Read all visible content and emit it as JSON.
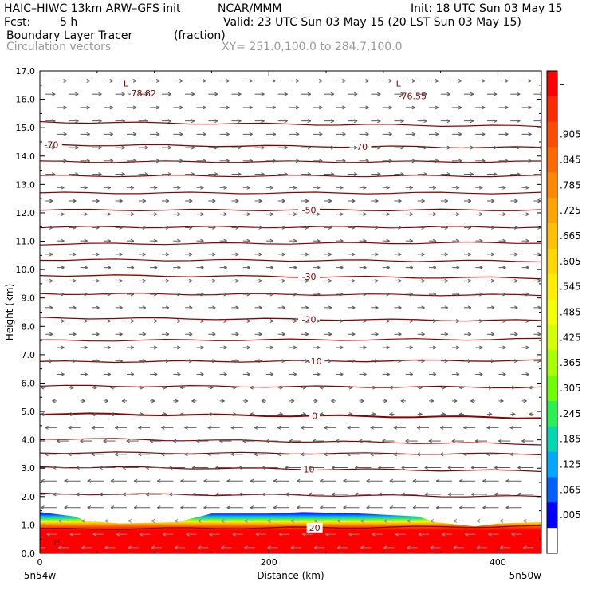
{
  "header": {
    "title_left": "HAIC–HIWC 13km ARW–GFS init",
    "org": "NCAR/MMM",
    "init": "Init: 18 UTC Sun 03 May 15",
    "fcst_label": "Fcst:",
    "fcst_value": "5 h",
    "valid": "Valid: 23 UTC Sun 03 May 15 (20 LST Sun 03 May 15)",
    "field_name": "Boundary Layer Tracer",
    "field_units": "(fraction)",
    "vector_name": "Circulation vectors",
    "xy_range": "XY= 251.0,100.0 to 284.7,100.0"
  },
  "chart_data": {
    "type": "heatmap",
    "xlabel": "Distance (km)",
    "ylabel": "Height (km)",
    "xlim": [
      0,
      438
    ],
    "ylim": [
      0,
      17
    ],
    "x_ticks": [
      0,
      200,
      400
    ],
    "y_ticks": [
      "0.0",
      "1.0",
      "2.0",
      "3.0",
      "4.0",
      "5.0",
      "6.0",
      "7.0",
      "8.0",
      "9.0",
      "10.0",
      "11.0",
      "12.0",
      "13.0",
      "14.0",
      "15.0",
      "16.0",
      "17.0"
    ],
    "x_end_labels": {
      "left": "5n54w",
      "right": "5n50w"
    },
    "colorbar": {
      "labels": [
        "–",
        ".905",
        ".845",
        ".785",
        ".725",
        ".665",
        ".605",
        ".545",
        ".485",
        ".425",
        ".365",
        ".305",
        ".245",
        ".185",
        ".125",
        ".065",
        ".005"
      ],
      "colors": [
        "#ff0000",
        "#ff2a00",
        "#ff4c00",
        "#ff6a00",
        "#ff8800",
        "#ffa500",
        "#ffc000",
        "#ffd800",
        "#ffee00",
        "#f4ff00",
        "#d4ff00",
        "#a8ff00",
        "#70ff00",
        "#2cf050",
        "#00d8b0",
        "#00a8ff",
        "#0060ff",
        "#0000ff",
        "#ffffff"
      ]
    },
    "tracer_top_km": [
      [
        0,
        1.45
      ],
      [
        30,
        1.3
      ],
      [
        40,
        1.15
      ],
      [
        70,
        1.05
      ],
      [
        120,
        1.1
      ],
      [
        150,
        1.4
      ],
      [
        200,
        1.4
      ],
      [
        230,
        1.45
      ],
      [
        280,
        1.4
      ],
      [
        330,
        1.3
      ],
      [
        345,
        1.1
      ],
      [
        380,
        0.95
      ],
      [
        400,
        1.05
      ],
      [
        438,
        1.1
      ]
    ],
    "temperature_contours": [
      {
        "label": "20",
        "y_start": 0.85,
        "y_end": 0.95,
        "label_x": 240
      },
      {
        "label": "10",
        "y_start": 3.05,
        "y_end": 2.9,
        "label_x": 235
      },
      {
        "label": "0",
        "y_start": 4.92,
        "y_end": 4.78,
        "label_x": 240
      },
      {
        "label": "-10",
        "y_start": 6.75,
        "y_end": 6.8,
        "label_x": 240
      },
      {
        "label": "-20",
        "y_start": 8.3,
        "y_end": 8.2,
        "label_x": 235
      },
      {
        "label": "-30",
        "y_start": 9.8,
        "y_end": 9.7,
        "label_x": 235
      },
      {
        "label": "-50",
        "y_start": 12.1,
        "y_end": 12.1,
        "label_x": 235
      },
      {
        "label": "-70",
        "y_start": 14.4,
        "y_end": 14.3,
        "label_x": 10
      },
      {
        "label": "-70",
        "y_start": 14.4,
        "y_end": 14.3,
        "label_x": 280
      }
    ],
    "other_contours_km": [
      [
        2.1,
        2.0
      ],
      [
        3.55,
        3.5
      ],
      [
        4.05,
        3.85
      ],
      [
        5.9,
        5.85
      ],
      [
        7.5,
        7.55
      ],
      [
        9.15,
        9.1
      ],
      [
        10.35,
        10.3
      ],
      [
        10.9,
        10.95
      ],
      [
        11.5,
        11.5
      ],
      [
        12.7,
        12.7
      ],
      [
        13.3,
        13.3
      ],
      [
        13.8,
        13.8
      ],
      [
        15.2,
        15.05
      ]
    ],
    "annotations": [
      {
        "text": "L",
        "x": 73,
        "y": 16.45
      },
      {
        "text": "-78.82",
        "x": 77,
        "y": 16.1
      },
      {
        "text": "L",
        "x": 311,
        "y": 16.45
      },
      {
        "text": "-76.55",
        "x": 313,
        "y": 16.0
      },
      {
        "text": "H",
        "x": 12,
        "y": 0.28
      }
    ]
  }
}
